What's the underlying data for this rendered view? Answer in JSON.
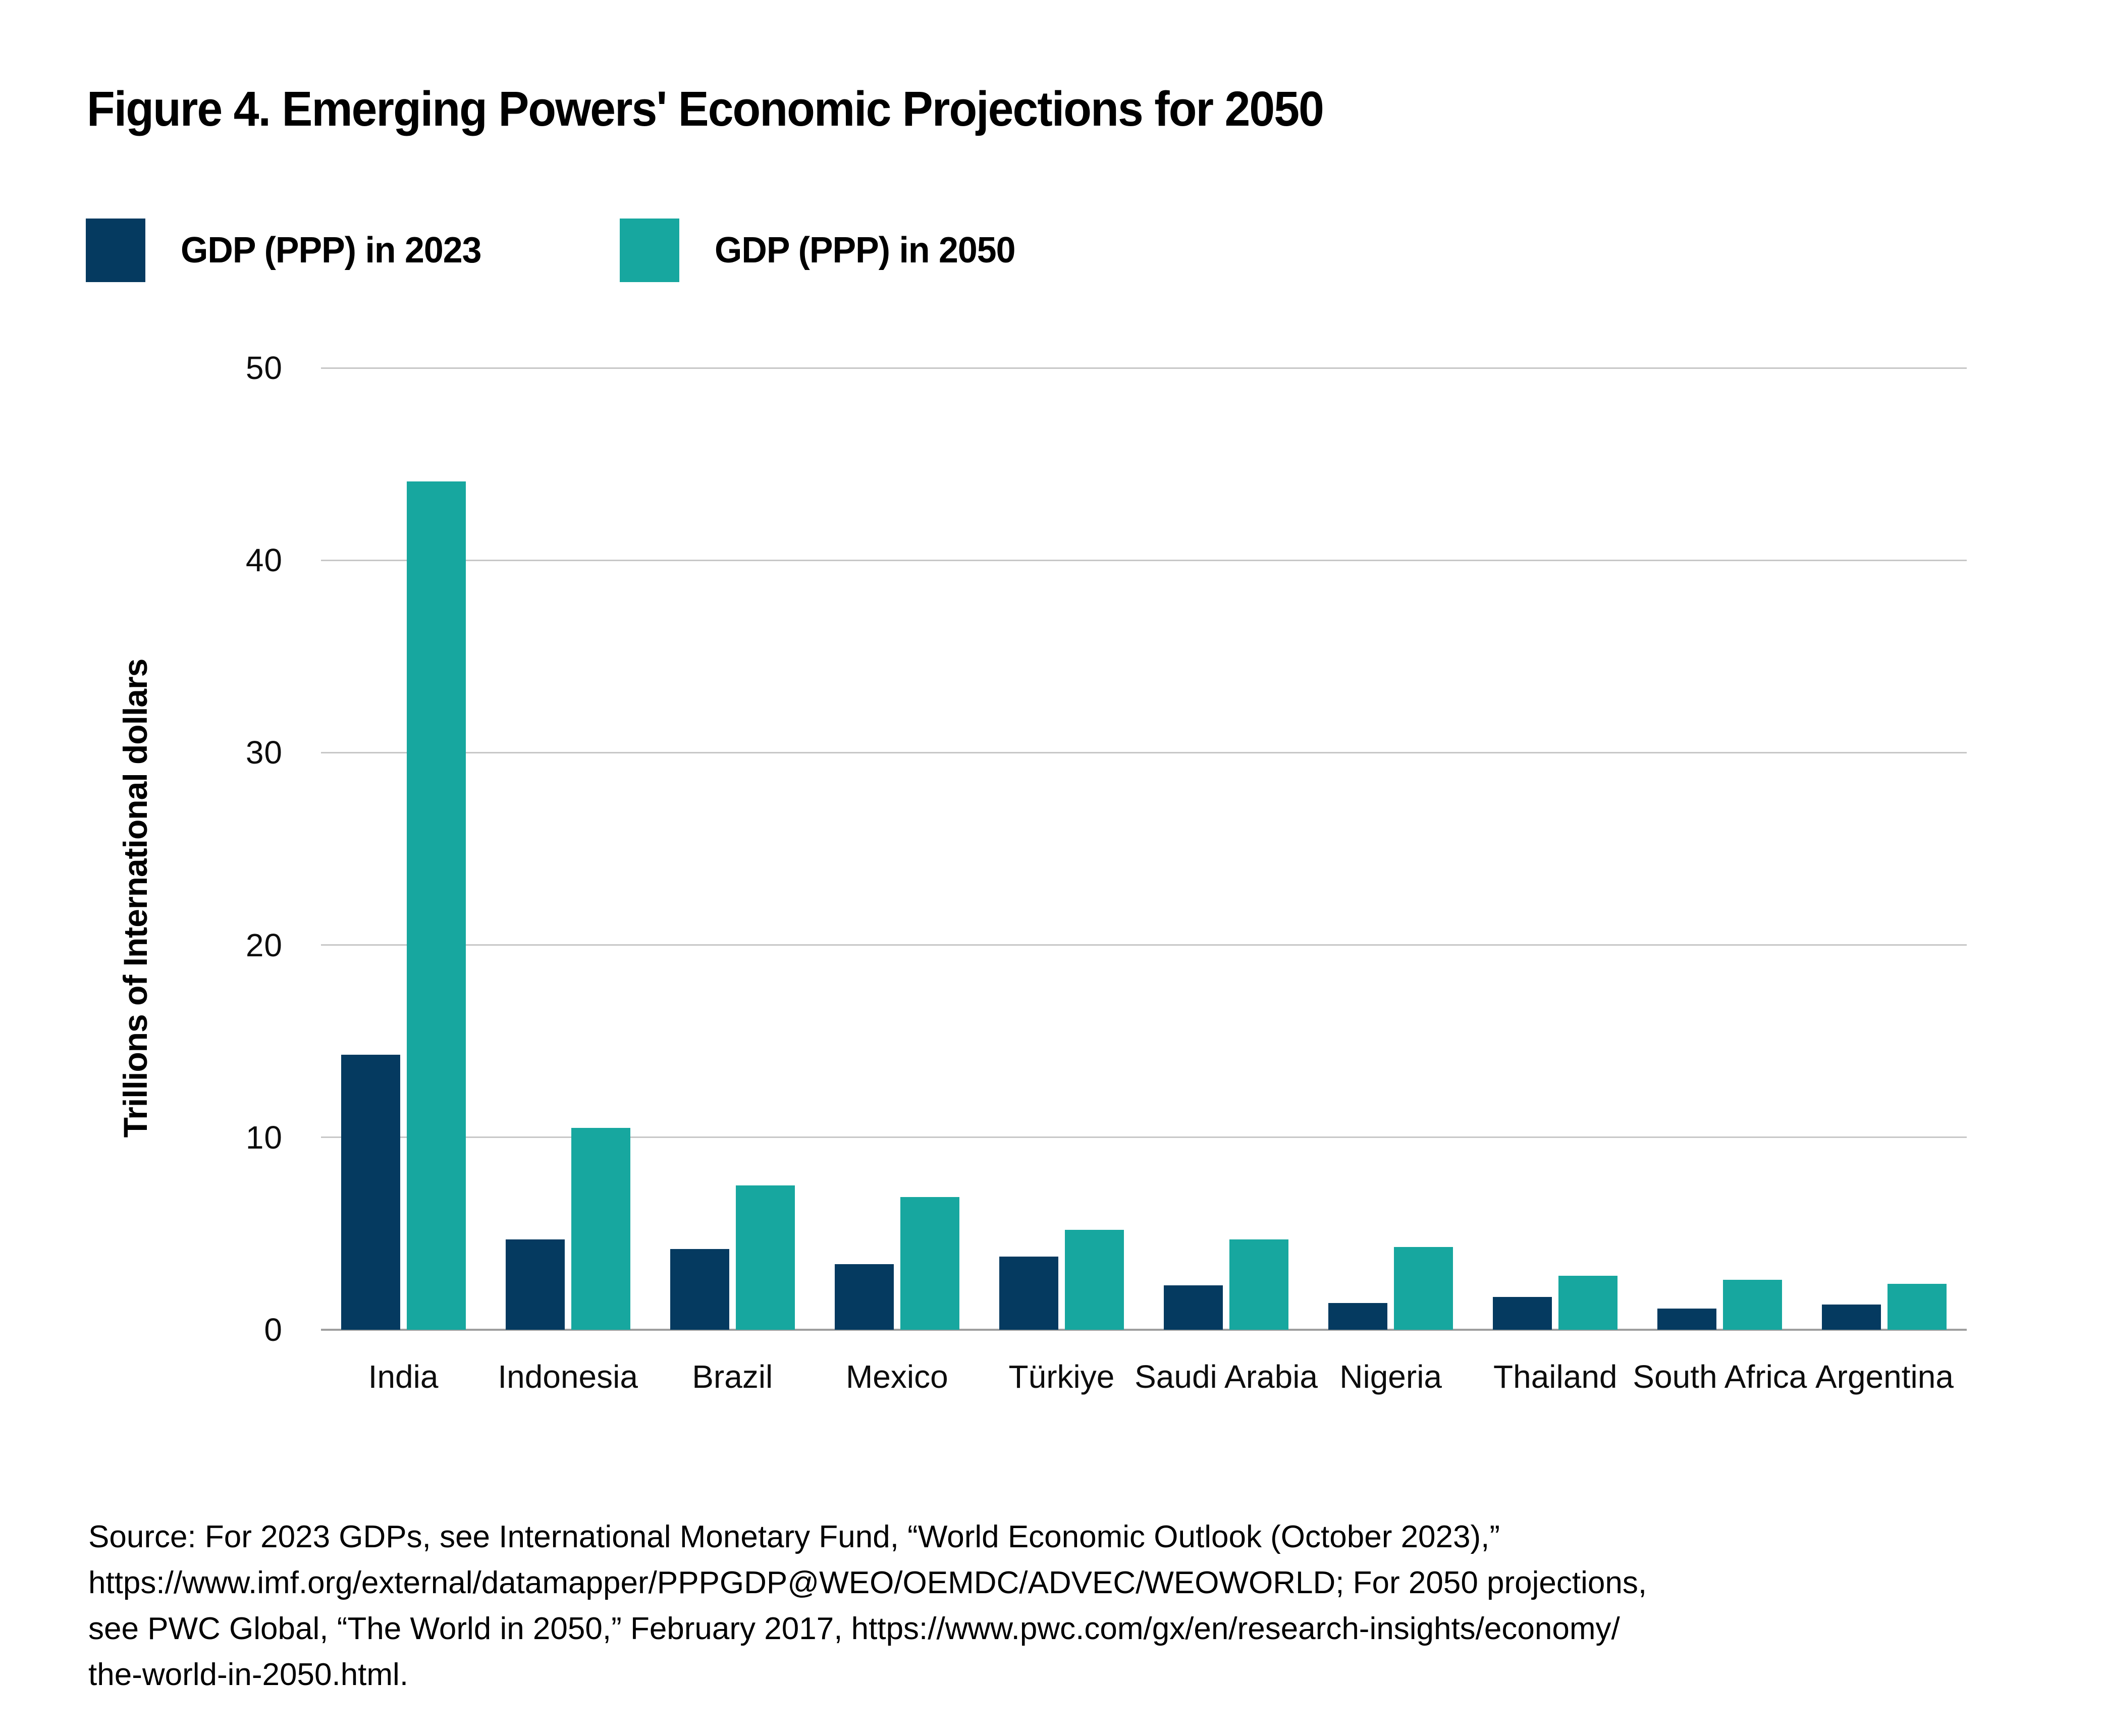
{
  "figure": {
    "title": "Figure 4. Emerging Powers' Economic Projections for 2050",
    "source_lines": [
      "Source: For 2023 GDPs, see International Monetary Fund, “World Economic Outlook (October 2023),”",
      "https://www.imf.org/external/datamapper/PPPGDP@WEO/OEMDC/ADVEC/WEOWORLD; For 2050 projections,",
      "see PWC Global, “The World in 2050,” February 2017, https://www.pwc.com/gx/en/research-insights/economy/",
      "the-world-in-2050.html."
    ]
  },
  "legend": [
    {
      "label": "GDP (PPP) in 2023",
      "color": "#053a60"
    },
    {
      "label": "GDP (PPP) in 2050",
      "color": "#17a79f"
    }
  ],
  "colors": {
    "series_2023": "#053a60",
    "series_2050": "#17a79f",
    "gridline": "#c7c7c7",
    "axis_line": "#9e9e9e",
    "text": "#000000"
  },
  "chart_data": {
    "type": "bar",
    "title": "Figure 4. Emerging Powers' Economic Projections for 2050",
    "categories": [
      "India",
      "Indonesia",
      "Brazil",
      "Mexico",
      "Türkiye",
      "Saudi Arabia",
      "Nigeria",
      "Thailand",
      "South Africa",
      "Argentina"
    ],
    "series": [
      {
        "name": "GDP (PPP) in 2023",
        "color": "#053a60",
        "values": [
          14.3,
          4.7,
          4.2,
          3.4,
          3.8,
          2.3,
          1.4,
          1.7,
          1.1,
          1.3
        ]
      },
      {
        "name": "GDP (PPP) in 2050",
        "color": "#17a79f",
        "values": [
          44.1,
          10.5,
          7.5,
          6.9,
          5.2,
          4.7,
          4.3,
          2.8,
          2.6,
          2.4
        ]
      }
    ],
    "xlabel": "",
    "ylabel": "Trillions of International dollars",
    "ylim": [
      0,
      50
    ],
    "yticks": [
      0,
      10,
      20,
      30,
      40,
      50
    ],
    "grid": "horizontal",
    "legend_position": "top-left"
  }
}
